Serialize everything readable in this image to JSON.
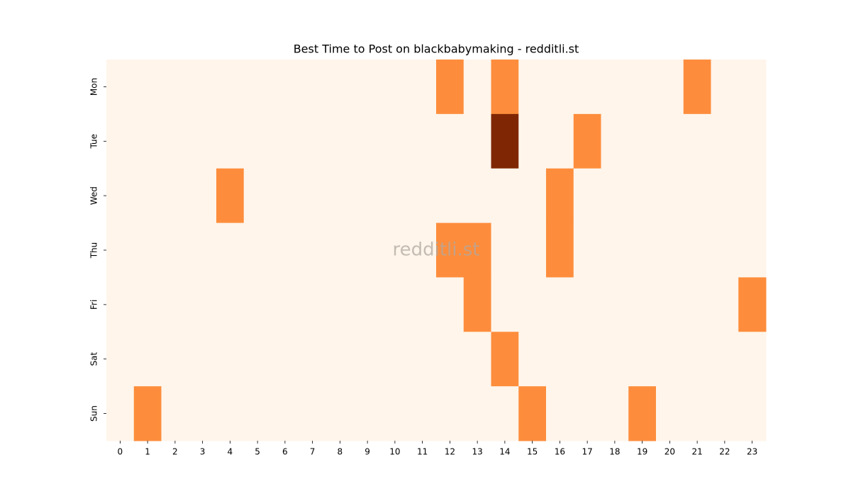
{
  "chart_data": {
    "type": "heatmap",
    "title": "Best Time to Post on blackbabymaking - redditli.st",
    "watermark": "redditli.st",
    "x": [
      0,
      1,
      2,
      3,
      4,
      5,
      6,
      7,
      8,
      9,
      10,
      11,
      12,
      13,
      14,
      15,
      16,
      17,
      18,
      19,
      20,
      21,
      22,
      23
    ],
    "y": [
      "Mon",
      "Tue",
      "Wed",
      "Thu",
      "Fri",
      "Sat",
      "Sun"
    ],
    "values": [
      [
        0,
        0,
        0,
        0,
        0,
        0,
        0,
        0,
        0,
        0,
        0,
        0,
        1,
        0,
        1,
        0,
        0,
        0,
        0,
        0,
        0,
        1,
        0,
        0
      ],
      [
        0,
        0,
        0,
        0,
        0,
        0,
        0,
        0,
        0,
        0,
        0,
        0,
        0,
        0,
        2,
        0,
        0,
        1,
        0,
        0,
        0,
        0,
        0,
        0
      ],
      [
        0,
        0,
        0,
        0,
        1,
        0,
        0,
        0,
        0,
        0,
        0,
        0,
        0,
        0,
        0,
        0,
        1,
        0,
        0,
        0,
        0,
        0,
        0,
        0
      ],
      [
        0,
        0,
        0,
        0,
        0,
        0,
        0,
        0,
        0,
        0,
        0,
        0,
        1,
        1,
        0,
        0,
        1,
        0,
        0,
        0,
        0,
        0,
        0,
        0
      ],
      [
        0,
        0,
        0,
        0,
        0,
        0,
        0,
        0,
        0,
        0,
        0,
        0,
        0,
        1,
        0,
        0,
        0,
        0,
        0,
        0,
        0,
        0,
        0,
        1
      ],
      [
        0,
        0,
        0,
        0,
        0,
        0,
        0,
        0,
        0,
        0,
        0,
        0,
        0,
        0,
        1,
        0,
        0,
        0,
        0,
        0,
        0,
        0,
        0,
        0
      ],
      [
        0,
        1,
        0,
        0,
        0,
        0,
        0,
        0,
        0,
        0,
        0,
        0,
        0,
        0,
        0,
        1,
        0,
        0,
        0,
        1,
        0,
        0,
        0,
        0
      ]
    ],
    "zlim": [
      0,
      2
    ],
    "colors": [
      "#fff5eb",
      "#fd8d3c",
      "#7f2704"
    ]
  }
}
